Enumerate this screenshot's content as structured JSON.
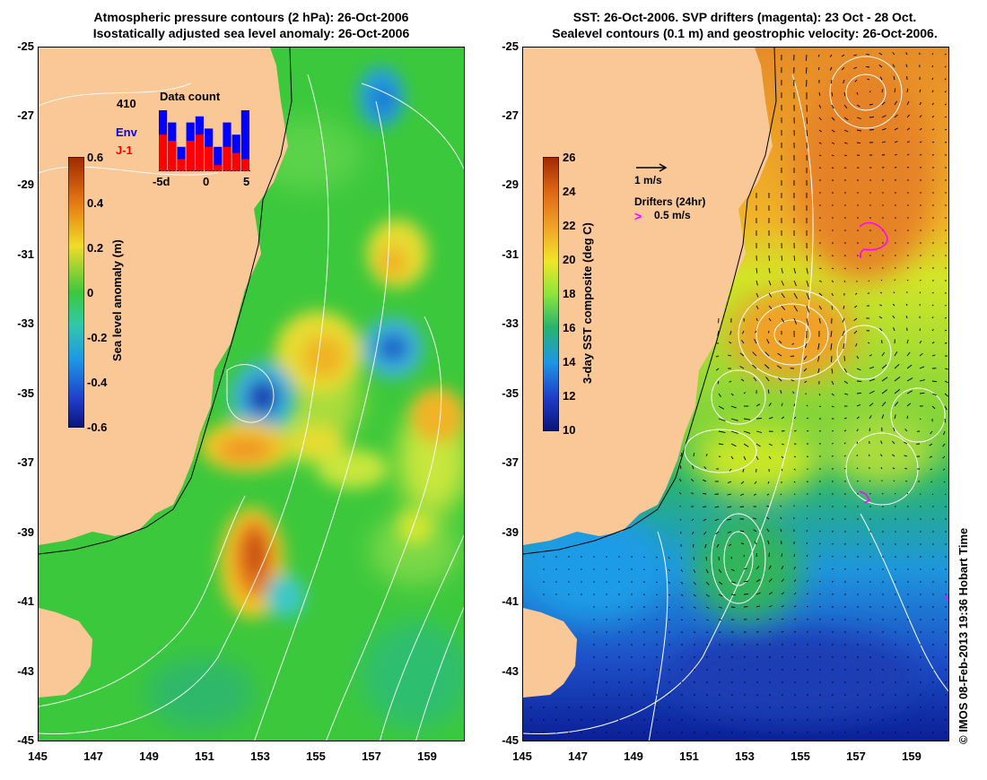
{
  "left_panel": {
    "title_line1": "Atmospheric pressure contours (2 hPa): 26-Oct-2006",
    "title_line2": "Isostatically adjusted sea level anomaly: 26-Oct-2006",
    "colorbar": {
      "label": "Sea level anomaly (m)",
      "ticks": [
        "0.6",
        "0.4",
        "0.2",
        "0",
        "-0.2",
        "-0.4",
        "-0.6"
      ]
    },
    "inset": {
      "title": "Data count",
      "count": "410",
      "legend_env": "Env",
      "legend_j1": "J-1",
      "x_ticks": [
        "-5d",
        "0",
        "5"
      ],
      "env_values": [
        10,
        8,
        4,
        8,
        9,
        7,
        4,
        8,
        6,
        10
      ],
      "j1_values": [
        6,
        5,
        2,
        5,
        6,
        4,
        1,
        4,
        3,
        2
      ]
    }
  },
  "right_panel": {
    "title_line1": "SST: 26-Oct-2006. SVP drifters (magenta): 23 Oct - 28 Oct.",
    "title_line2": "Sealevel contours (0.1 m) and geostrophic velocity: 26-Oct-2006.",
    "colorbar": {
      "label": "3-day SST composite (deg C)",
      "ticks": [
        "26",
        "24",
        "22",
        "20",
        "18",
        "16",
        "14",
        "12",
        "10"
      ]
    },
    "velocity_legend": "1 m/s",
    "drifters_legend": "Drifters (24hr)",
    "drifters_speed": "0.5 m/s"
  },
  "axes": {
    "lat_ticks": [
      "-25",
      "-27",
      "-29",
      "-31",
      "-33",
      "-35",
      "-37",
      "-39",
      "-41",
      "-43",
      "-45"
    ],
    "lon_ticks": [
      "145",
      "147",
      "149",
      "151",
      "153",
      "155",
      "157",
      "159"
    ]
  },
  "copyright": "© IMOS 08-Feb-2013 19:36 Hobart Time",
  "colors": {
    "land": "#f9c896",
    "sla_zero": "#3cc83c",
    "sla_high": "#e05a14",
    "sla_low": "#1e3cc8",
    "sst_warm": "#e68c28",
    "sst_mid": "#d2e628",
    "sst_cold": "#1e46c8",
    "drifter": "#ff00ff"
  }
}
